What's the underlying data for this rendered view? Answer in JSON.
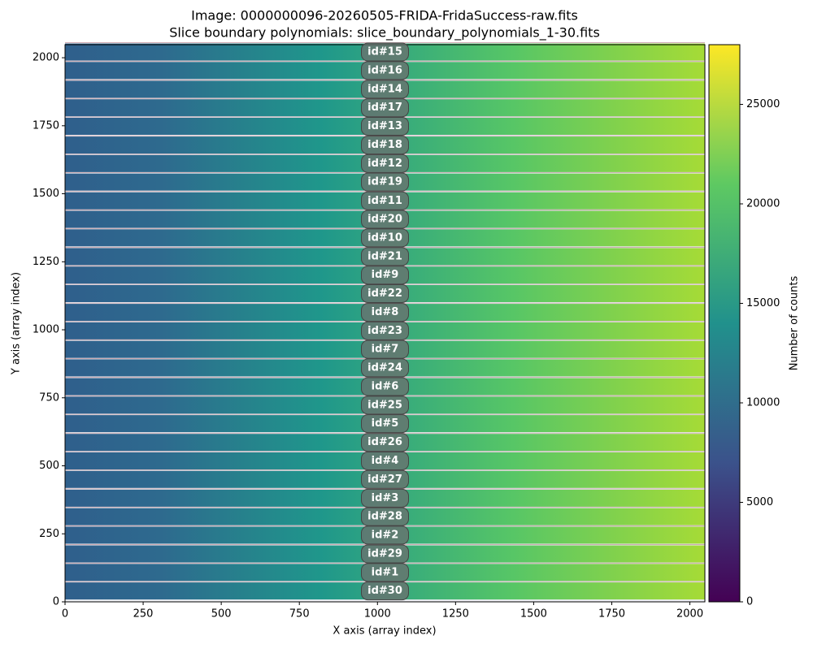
{
  "chart_data": {
    "type": "image",
    "title": "Image: 0000000096-20260505-FRIDA-FridaSuccess-raw.fits",
    "subtitle": "Slice boundary polynomials: slice_boundary_polynomials_1-30.fits",
    "x_label": "X axis (array index)",
    "y_label": "Y axis (array index)",
    "xlim": [
      0,
      2048
    ],
    "ylim": [
      0,
      2048
    ],
    "xticks": [
      0,
      250,
      500,
      750,
      1000,
      1250,
      1500,
      1750,
      2000
    ],
    "yticks": [
      0,
      250,
      500,
      750,
      1000,
      1250,
      1500,
      1750,
      2000
    ],
    "colorbar": {
      "label": "Number of counts",
      "lim": [
        0,
        28000
      ],
      "ticks": [
        0,
        5000,
        10000,
        15000,
        20000,
        25000
      ],
      "colormap": [
        "#440154",
        "#3b528b",
        "#21918c",
        "#5ec962",
        "#fde725"
      ]
    },
    "label_x": 1024,
    "slices": [
      {
        "label": "id#15",
        "y": 2021
      },
      {
        "label": "id#16",
        "y": 1953
      },
      {
        "label": "id#14",
        "y": 1884
      },
      {
        "label": "id#17",
        "y": 1816
      },
      {
        "label": "id#13",
        "y": 1748
      },
      {
        "label": "id#18",
        "y": 1679
      },
      {
        "label": "id#12",
        "y": 1611
      },
      {
        "label": "id#19",
        "y": 1543
      },
      {
        "label": "id#11",
        "y": 1474
      },
      {
        "label": "id#20",
        "y": 1406
      },
      {
        "label": "id#10",
        "y": 1338
      },
      {
        "label": "id#21",
        "y": 1269
      },
      {
        "label": "id#9",
        "y": 1201
      },
      {
        "label": "id#22",
        "y": 1133
      },
      {
        "label": "id#8",
        "y": 1064
      },
      {
        "label": "id#23",
        "y": 996
      },
      {
        "label": "id#7",
        "y": 928
      },
      {
        "label": "id#24",
        "y": 860
      },
      {
        "label": "id#6",
        "y": 791
      },
      {
        "label": "id#25",
        "y": 723
      },
      {
        "label": "id#5",
        "y": 655
      },
      {
        "label": "id#26",
        "y": 586
      },
      {
        "label": "id#4",
        "y": 518
      },
      {
        "label": "id#27",
        "y": 450
      },
      {
        "label": "id#3",
        "y": 381
      },
      {
        "label": "id#28",
        "y": 313
      },
      {
        "label": "id#2",
        "y": 245
      },
      {
        "label": "id#29",
        "y": 176
      },
      {
        "label": "id#1",
        "y": 108
      },
      {
        "label": "id#30",
        "y": 40
      }
    ]
  }
}
